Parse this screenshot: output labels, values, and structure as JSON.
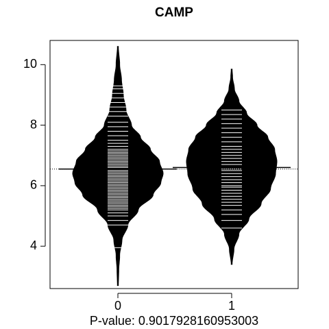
{
  "chart_data": {
    "type": "beanplot",
    "title": "CAMP",
    "xlabel": "P-value: 0.9017928160953003",
    "ylabel": "",
    "categories": [
      "0",
      "1"
    ],
    "ylim": [
      2.6,
      10.8
    ],
    "yticks": [
      4,
      6,
      8,
      10
    ],
    "overall_mean_line": 6.55,
    "grid": false,
    "legend": "none",
    "series": [
      {
        "category": "0",
        "mean": 6.55,
        "min": 2.7,
        "max": 10.6,
        "density": [
          [
            2.7,
            0.01
          ],
          [
            3.2,
            0.02
          ],
          [
            3.7,
            0.04
          ],
          [
            4.2,
            0.09
          ],
          [
            4.7,
            0.22
          ],
          [
            5.2,
            0.45
          ],
          [
            5.7,
            0.78
          ],
          [
            6.1,
            0.95
          ],
          [
            6.4,
            1.0
          ],
          [
            6.8,
            0.92
          ],
          [
            7.2,
            0.72
          ],
          [
            7.6,
            0.5
          ],
          [
            8.0,
            0.3
          ],
          [
            8.5,
            0.18
          ],
          [
            9.0,
            0.12
          ],
          [
            9.5,
            0.08
          ],
          [
            10.0,
            0.04
          ],
          [
            10.6,
            0.01
          ]
        ],
        "observations": [
          3.95,
          4.7,
          4.85,
          5.0,
          5.1,
          5.2,
          5.25,
          5.3,
          5.35,
          5.4,
          5.45,
          5.5,
          5.55,
          5.6,
          5.65,
          5.7,
          5.75,
          5.8,
          5.85,
          5.9,
          5.95,
          6.0,
          6.05,
          6.1,
          6.15,
          6.2,
          6.25,
          6.3,
          6.35,
          6.4,
          6.45,
          6.5,
          6.55,
          6.6,
          6.65,
          6.7,
          6.75,
          6.8,
          6.85,
          6.9,
          6.95,
          7.0,
          7.05,
          7.1,
          7.15,
          7.2,
          7.3,
          7.4,
          7.5,
          7.65,
          7.8,
          7.95,
          8.1,
          8.3,
          8.45,
          8.6,
          8.75,
          8.9,
          9.05,
          9.2,
          9.3
        ]
      },
      {
        "category": "1",
        "mean": 6.6,
        "min": 3.4,
        "max": 9.85,
        "density": [
          [
            3.4,
            0.01
          ],
          [
            3.9,
            0.05
          ],
          [
            4.4,
            0.16
          ],
          [
            4.9,
            0.38
          ],
          [
            5.4,
            0.65
          ],
          [
            5.9,
            0.86
          ],
          [
            6.4,
            0.97
          ],
          [
            6.8,
            1.0
          ],
          [
            7.2,
            0.95
          ],
          [
            7.6,
            0.8
          ],
          [
            8.0,
            0.56
          ],
          [
            8.4,
            0.33
          ],
          [
            8.8,
            0.16
          ],
          [
            9.2,
            0.06
          ],
          [
            9.6,
            0.02
          ],
          [
            9.85,
            0.01
          ]
        ],
        "observations": [
          4.6,
          4.85,
          5.05,
          5.2,
          5.35,
          5.45,
          5.55,
          5.65,
          5.75,
          5.85,
          5.95,
          6.0,
          6.1,
          6.2,
          6.3,
          6.4,
          6.5,
          6.55,
          6.6,
          6.7,
          6.8,
          6.9,
          7.0,
          7.1,
          7.2,
          7.3,
          7.45,
          7.6,
          7.75,
          7.9,
          8.05,
          8.2,
          8.35,
          8.5
        ]
      }
    ]
  }
}
